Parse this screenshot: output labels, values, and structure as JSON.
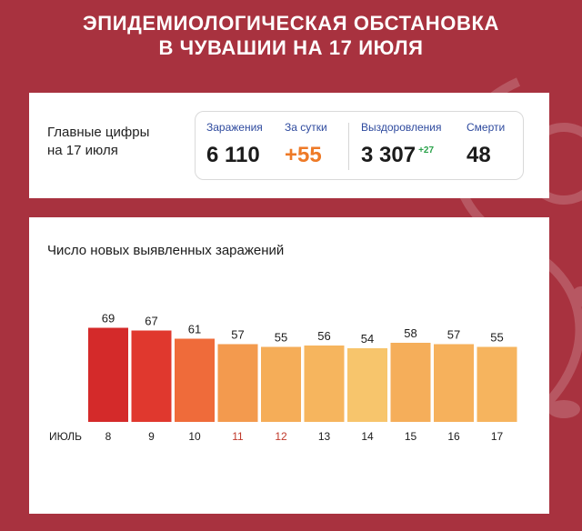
{
  "header": {
    "line1": "ЭПИДЕМИОЛОГИЧЕСКАЯ ОБСТАНОВКА",
    "line2": "В ЧУВАШИИ НА 17 ИЮЛЯ"
  },
  "summary": {
    "label_line1": "Главные цифры",
    "label_line2": "на 17 июля",
    "infections_caption": "Заражения",
    "infections_value": "6 110",
    "daily_caption": "За сутки",
    "daily_value": "+55",
    "recovered_caption": "Выздоровления",
    "recovered_value": "3 307",
    "recovered_delta": "+27",
    "deaths_caption": "Смерти",
    "deaths_value": "48"
  },
  "colors": {
    "background": "#a8323f",
    "weekend_label": "#c0392b",
    "bar_gradient": [
      "#d42a2a",
      "#e0382e",
      "#ef6b3a",
      "#f39a4e",
      "#f5ad58",
      "#f6b55e",
      "#f7c56c",
      "#f5ae5a",
      "#f6b15c",
      "#f6b45e"
    ]
  },
  "chart_data": {
    "type": "bar",
    "title": "Число новых выявленных заражений",
    "month_label": "ИЮЛЬ",
    "categories": [
      "8",
      "9",
      "10",
      "11",
      "12",
      "13",
      "14",
      "15",
      "16",
      "17"
    ],
    "values": [
      69,
      67,
      61,
      57,
      55,
      56,
      54,
      58,
      57,
      55
    ],
    "highlighted_categories": [
      "11",
      "12"
    ],
    "ylim": [
      0,
      70
    ],
    "grid": false
  }
}
